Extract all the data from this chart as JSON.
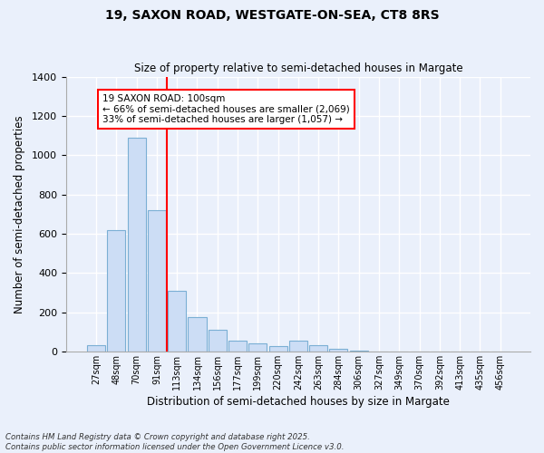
{
  "title1": "19, SAXON ROAD, WESTGATE-ON-SEA, CT8 8RS",
  "title2": "Size of property relative to semi-detached houses in Margate",
  "xlabel": "Distribution of semi-detached houses by size in Margate",
  "ylabel": "Number of semi-detached properties",
  "categories": [
    "27sqm",
    "48sqm",
    "70sqm",
    "91sqm",
    "113sqm",
    "134sqm",
    "156sqm",
    "177sqm",
    "199sqm",
    "220sqm",
    "242sqm",
    "263sqm",
    "284sqm",
    "306sqm",
    "327sqm",
    "349sqm",
    "370sqm",
    "392sqm",
    "413sqm",
    "435sqm",
    "456sqm"
  ],
  "values": [
    30,
    620,
    1090,
    720,
    310,
    175,
    110,
    55,
    40,
    25,
    55,
    30,
    15,
    5,
    0,
    0,
    0,
    0,
    0,
    0,
    0
  ],
  "bar_color": "#ccddf5",
  "bar_edge_color": "#7bafd4",
  "ref_line_label": "19 SAXON ROAD: 100sqm",
  "annotation_smaller": "← 66% of semi-detached houses are smaller (2,069)",
  "annotation_larger": "33% of semi-detached houses are larger (1,057) →",
  "ylim": [
    0,
    1400
  ],
  "yticks": [
    0,
    200,
    400,
    600,
    800,
    1000,
    1200,
    1400
  ],
  "footnote1": "Contains HM Land Registry data © Crown copyright and database right 2025.",
  "footnote2": "Contains public sector information licensed under the Open Government Licence v3.0.",
  "background_color": "#eaf0fb",
  "plot_bg_color": "#eaf0fb"
}
